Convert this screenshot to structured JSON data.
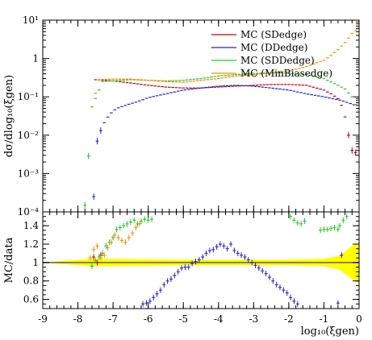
{
  "chart_data": [
    {
      "type": "scatter",
      "panel": "main",
      "ylabel": "dσ/dlog₁₀(ξgen)",
      "y_scale": "log",
      "ylim": [
        0.0001,
        10
      ],
      "xlim": [
        -9,
        0
      ],
      "y_ticks": [
        {
          "value": 10,
          "label": "10¹"
        },
        {
          "value": 1,
          "label": "1"
        },
        {
          "value": 0.1,
          "label": "10⁻¹"
        },
        {
          "value": 0.01,
          "label": "10⁻²"
        },
        {
          "value": 0.001,
          "label": "10⁻³"
        },
        {
          "value": 0.0001,
          "label": "10⁻⁴"
        }
      ],
      "legend_position": "top-right",
      "series": [
        {
          "name": "MC (SDedge)",
          "color": "#cc0000",
          "style": "line",
          "x": [
            -7.5,
            -7.0,
            -6.5,
            -6.0,
            -5.5,
            -5.0,
            -4.5,
            -4.0,
            -3.5,
            -3.0,
            -2.5,
            -2.0,
            -1.5,
            -1.0,
            -0.8,
            -0.6,
            -0.5,
            -0.4,
            -0.3,
            -0.2,
            -0.1
          ],
          "y": [
            0.28,
            0.26,
            0.23,
            0.2,
            0.18,
            0.17,
            0.17,
            0.18,
            0.19,
            0.2,
            0.21,
            0.21,
            0.2,
            0.15,
            0.12,
            0.09,
            0.06,
            0.03,
            0.01,
            0.004,
            0.0035
          ]
        },
        {
          "name": "MC (DDedge)",
          "color": "#2222dd",
          "style": "line",
          "x": [
            -7.55,
            -7.45,
            -7.3,
            -7.1,
            -6.9,
            -6.6,
            -6.3,
            -6.0,
            -5.5,
            -5.0,
            -4.5,
            -4.0,
            -3.5,
            -3.0,
            -2.5,
            -2.0,
            -1.5,
            -1.0,
            -0.5,
            -0.1
          ],
          "y": [
            0.00025,
            0.007,
            0.018,
            0.035,
            0.05,
            0.062,
            0.075,
            0.095,
            0.12,
            0.15,
            0.17,
            0.19,
            0.2,
            0.19,
            0.17,
            0.15,
            0.12,
            0.1,
            0.08,
            0.06
          ]
        },
        {
          "name": "MC (SDDedge)",
          "color": "#22cc22",
          "style": "line",
          "x": [
            -7.8,
            -7.6,
            -7.3,
            -7.0,
            -6.5,
            -6.0,
            -5.5,
            -5.0,
            -4.5,
            -4.0,
            -3.5,
            -3.0,
            -2.5,
            -2.0,
            -1.5,
            -1.0,
            -0.6,
            -0.4,
            -0.2,
            -0.05
          ],
          "y": [
            0.00015,
            0.055,
            0.25,
            0.26,
            0.28,
            0.27,
            0.26,
            0.27,
            0.3,
            0.35,
            0.38,
            0.41,
            0.42,
            0.41,
            0.38,
            0.3,
            0.2,
            0.16,
            0.1,
            0.05
          ]
        },
        {
          "name": "MC (MinBiasedge)",
          "color": "#ff8800",
          "style": "line",
          "x": [
            -7.6,
            -7.4,
            -7.0,
            -6.5,
            -6.0,
            -5.5,
            -5.0,
            -4.5,
            -4.0,
            -3.5,
            -3.0,
            -2.5,
            -2.0,
            -1.5,
            -1.0,
            -0.8,
            -0.6,
            -0.4,
            -0.2,
            -0.05
          ],
          "y": [
            0.055,
            0.28,
            0.29,
            0.29,
            0.27,
            0.25,
            0.24,
            0.27,
            0.3,
            0.35,
            0.38,
            0.42,
            0.47,
            0.62,
            0.9,
            1.2,
            1.7,
            2.6,
            4.5,
            6.0
          ]
        }
      ]
    },
    {
      "type": "scatter",
      "panel": "ratio",
      "ylabel": "MC/data",
      "xlabel": "log₁₀(ξgen)",
      "xlim": [
        -9,
        0
      ],
      "ylim": [
        0.5,
        1.55
      ],
      "x_ticks": [
        {
          "value": -9,
          "label": "-9"
        },
        {
          "value": -8,
          "label": "-8"
        },
        {
          "value": -7,
          "label": "-7"
        },
        {
          "value": -6,
          "label": "-6"
        },
        {
          "value": -5,
          "label": "-5"
        },
        {
          "value": -4,
          "label": "-4"
        },
        {
          "value": -3,
          "label": "-3"
        },
        {
          "value": -2,
          "label": "-2"
        },
        {
          "value": -1,
          "label": "-1"
        },
        {
          "value": 0,
          "label": "0"
        }
      ],
      "y_ticks": [
        {
          "value": 0.6,
          "label": "0.6"
        },
        {
          "value": 0.8,
          "label": "0.8"
        },
        {
          "value": 1,
          "label": "1"
        },
        {
          "value": 1.2,
          "label": "1.2"
        },
        {
          "value": 1.4,
          "label": "1.4"
        }
      ],
      "reference_line": 1.0,
      "band": {
        "color": "#ffff00",
        "x": [
          -9.0,
          -7.6,
          -7.0,
          -6.0,
          -5.0,
          -4.0,
          -3.0,
          -2.0,
          -1.0,
          -0.6,
          -0.4,
          -0.2,
          0.0
        ],
        "half_width": [
          0.0,
          0.04,
          0.04,
          0.035,
          0.03,
          0.03,
          0.03,
          0.03,
          0.04,
          0.07,
          0.12,
          0.18,
          0.22
        ]
      },
      "series": [
        {
          "name": "MC (SDedge)",
          "color": "#cc0000",
          "x": [
            -7.55,
            -7.45,
            -7.35
          ],
          "y": [
            1.06,
            1.0,
            1.08
          ]
        },
        {
          "name": "MC (DDedge)",
          "color": "#2222dd",
          "x": [
            -6.15,
            -6.05,
            -5.95,
            -5.85,
            -5.75,
            -5.65,
            -5.55,
            -5.45,
            -5.35,
            -5.25,
            -5.15,
            -5.05,
            -4.95,
            -4.85,
            -4.75,
            -4.65,
            -4.55,
            -4.45,
            -4.35,
            -4.25,
            -4.15,
            -4.05,
            -3.95,
            -3.85,
            -3.75,
            -3.65,
            -3.55,
            -3.45,
            -3.35,
            -3.25,
            -3.15,
            -3.05,
            -2.95,
            -2.85,
            -2.75,
            -2.65,
            -2.55,
            -2.45,
            -2.35,
            -2.25,
            -2.15,
            -2.05,
            -1.95,
            -1.85,
            -1.75,
            -0.6,
            -0.5
          ],
          "y": [
            0.55,
            0.56,
            0.58,
            0.62,
            0.66,
            0.7,
            0.76,
            0.8,
            0.82,
            0.86,
            0.9,
            0.94,
            0.95,
            0.95,
            0.99,
            1.01,
            1.03,
            1.06,
            1.1,
            1.13,
            1.14,
            1.17,
            1.2,
            1.18,
            1.15,
            1.2,
            1.13,
            1.1,
            1.08,
            1.06,
            1.03,
            1.0,
            0.97,
            0.94,
            0.91,
            0.88,
            0.84,
            0.8,
            0.76,
            0.73,
            0.7,
            0.67,
            0.62,
            0.58,
            0.55,
            0.56,
            1.08
          ]
        },
        {
          "name": "MC (SDDedge)",
          "color": "#22cc22",
          "x": [
            -7.6,
            -7.5,
            -7.4,
            -7.3,
            -7.2,
            -7.1,
            -7.0,
            -6.9,
            -6.8,
            -6.7,
            -6.6,
            -6.5,
            -6.4,
            -6.3,
            -6.2,
            -6.1,
            -6.0,
            -5.9,
            -1.95,
            -1.85,
            -1.75,
            -1.65,
            -1.55,
            -1.1,
            -1.0,
            -0.9,
            -0.8,
            -0.7,
            -0.6,
            -0.55,
            -0.45,
            -0.35
          ],
          "y": [
            0.96,
            1.02,
            1.06,
            1.1,
            1.18,
            1.22,
            1.27,
            1.36,
            1.38,
            1.4,
            1.42,
            1.44,
            1.46,
            1.42,
            1.45,
            1.47,
            1.46,
            1.47,
            1.5,
            1.46,
            1.43,
            1.42,
            1.45,
            1.35,
            1.36,
            1.36,
            1.37,
            1.38,
            1.36,
            1.4,
            1.46,
            1.5
          ]
        },
        {
          "name": "MC (MinBiasedge)",
          "color": "#ff8800",
          "x": [
            -7.65,
            -7.55,
            -7.45,
            -7.35,
            -7.25,
            -7.15,
            -7.05,
            -6.95,
            -6.85,
            -6.75,
            -6.65,
            -6.55,
            -6.45,
            -6.35,
            -6.25
          ],
          "y": [
            1.05,
            1.14,
            1.18,
            1.05,
            1.08,
            1.16,
            1.22,
            1.3,
            1.27,
            1.24,
            1.22,
            1.27,
            1.32,
            1.38,
            1.42
          ]
        }
      ]
    }
  ]
}
